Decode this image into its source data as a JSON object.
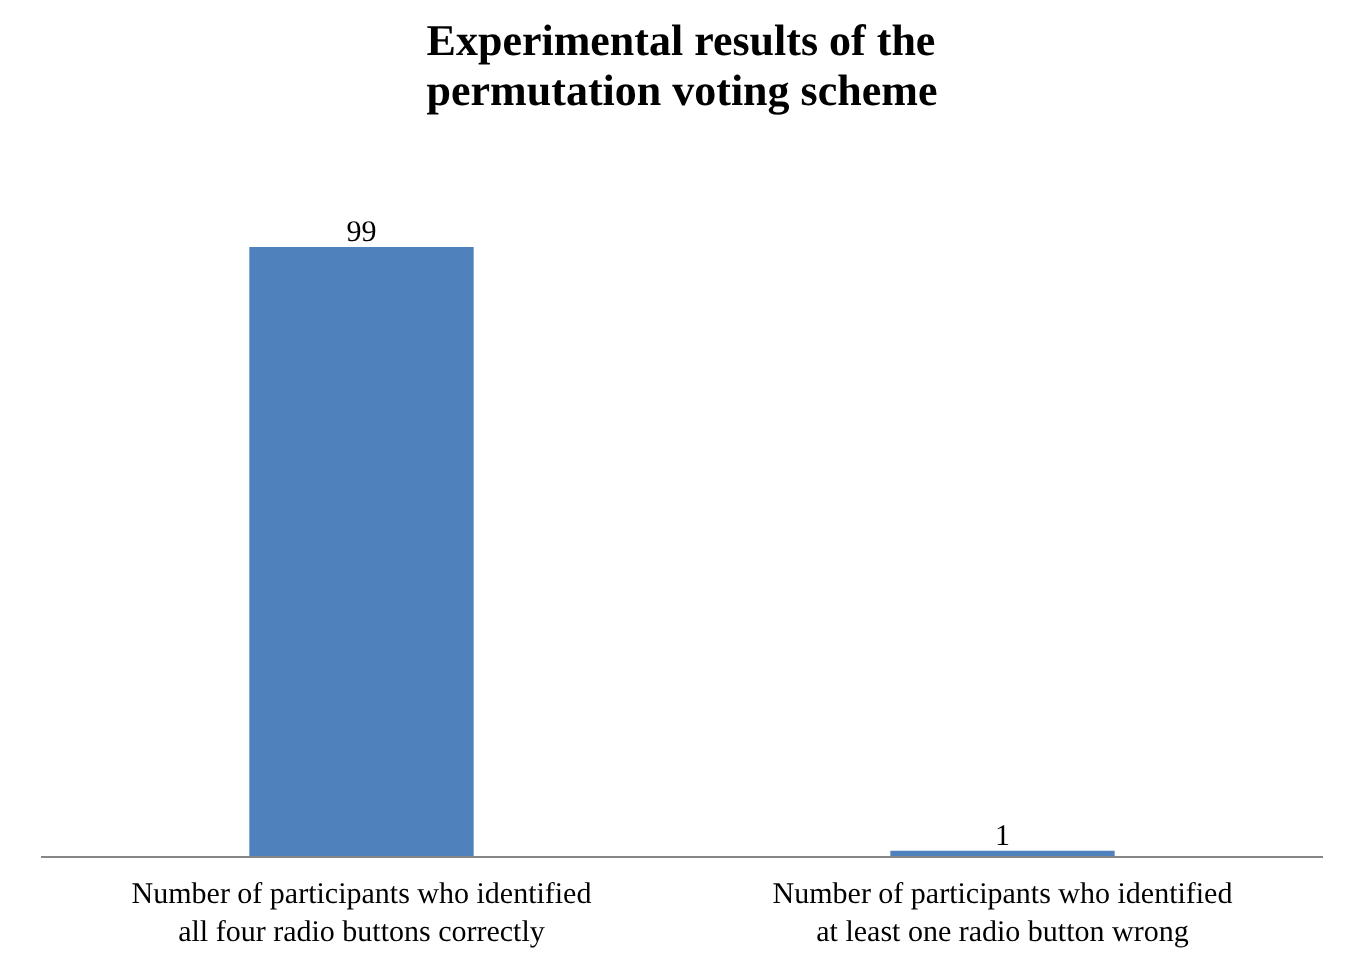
{
  "chart_data": {
    "type": "bar",
    "title": "Experimental results of the permutation voting scheme",
    "categories": [
      "Number of participants who identified all four radio buttons correctly",
      "Number of participants who identified at least one radio button wrong"
    ],
    "values": [
      99,
      1
    ],
    "color": "#4f81bd",
    "data_labels": true
  }
}
